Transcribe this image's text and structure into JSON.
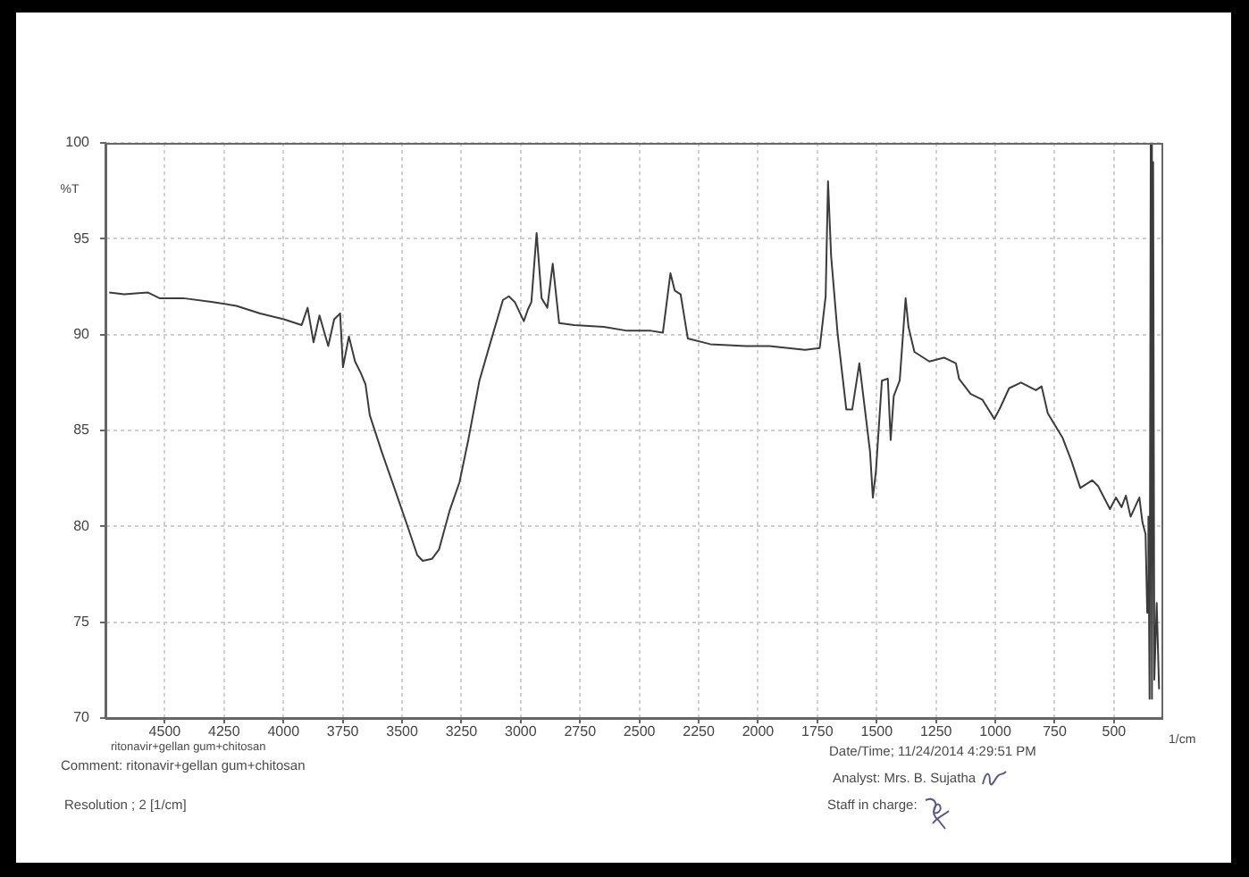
{
  "chart_data": {
    "type": "line",
    "x": [
      4734,
      4671,
      4572,
      4522,
      4422,
      4297,
      4198,
      4098,
      3998,
      3923,
      3898,
      3873,
      3848,
      3811,
      3786,
      3761,
      3749,
      3724,
      3698,
      3674,
      3654,
      3636,
      3586,
      3524,
      3474,
      3436,
      3413,
      3374,
      3344,
      3300,
      3258,
      3221,
      3174,
      3125,
      3075,
      3050,
      3025,
      2987,
      2970,
      2955,
      2933,
      2912,
      2888,
      2865,
      2838,
      2775,
      2650,
      2551,
      2451,
      2401,
      2369,
      2351,
      2326,
      2296,
      2201,
      2052,
      1952,
      1802,
      1740,
      1715,
      1705,
      1692,
      1665,
      1628,
      1603,
      1573,
      1528,
      1516,
      1503,
      1478,
      1453,
      1441,
      1428,
      1403,
      1378,
      1366,
      1341,
      1278,
      1216,
      1166,
      1153,
      1104,
      1054,
      1004,
      979,
      942,
      892,
      829,
      805,
      779,
      716,
      679,
      642,
      592,
      567,
      517,
      492,
      468,
      450,
      430,
      393,
      380,
      367,
      360,
      355,
      350,
      345,
      340,
      335,
      330,
      320,
      310
    ],
    "values": [
      92.2,
      92.1,
      92.2,
      91.9,
      91.9,
      91.7,
      91.5,
      91.1,
      90.8,
      90.5,
      91.4,
      89.6,
      91.0,
      89.4,
      90.8,
      91.1,
      88.3,
      89.9,
      88.6,
      88.0,
      87.4,
      85.8,
      83.9,
      81.7,
      79.9,
      78.5,
      78.2,
      78.3,
      78.8,
      80.8,
      82.3,
      84.5,
      87.6,
      89.7,
      91.8,
      92.0,
      91.7,
      90.7,
      91.3,
      91.7,
      95.3,
      91.9,
      91.4,
      93.7,
      90.6,
      90.5,
      90.4,
      90.2,
      90.2,
      90.1,
      93.2,
      92.3,
      92.1,
      89.8,
      89.5,
      89.4,
      89.4,
      89.2,
      89.3,
      92.0,
      98.0,
      94.1,
      90.1,
      86.1,
      86.1,
      88.5,
      83.9,
      81.5,
      82.9,
      87.6,
      87.7,
      84.5,
      86.8,
      87.6,
      91.9,
      90.4,
      89.1,
      88.6,
      88.8,
      88.5,
      87.7,
      86.9,
      86.6,
      85.6,
      86.2,
      87.2,
      87.5,
      87.1,
      87.3,
      85.9,
      84.6,
      83.4,
      82.0,
      82.4,
      82.1,
      80.9,
      81.5,
      81.0,
      81.6,
      80.5,
      81.5,
      80.2,
      79.6,
      75.5,
      80.5,
      71.0,
      100,
      71.0,
      99,
      72.0,
      76.0,
      71.5
    ],
    "color": "#3c3c3c",
    "marker": "none",
    "xlim": [
      4750,
      300
    ],
    "xticks": [
      4500,
      4250,
      4000,
      3750,
      3500,
      3250,
      3000,
      2750,
      2500,
      2250,
      2000,
      1750,
      1500,
      1250,
      1000,
      750,
      500
    ],
    "ylim": [
      70,
      100
    ],
    "yticks": [
      70,
      75,
      80,
      85,
      90,
      95,
      100
    ],
    "xlabel": "1/cm",
    "ylabel": "%T",
    "grid": true,
    "annotations": [
      "ritonavir+gellan gum+chitosan",
      "Comment: ritonavir+gellan gum+chitosan",
      "Resolution ;  2 [1/cm]",
      "Date/Time; 11/24/2014 4:29:51 PM",
      "Analyst: Mrs. B. Sujatha",
      "Staff in charge:"
    ]
  }
}
